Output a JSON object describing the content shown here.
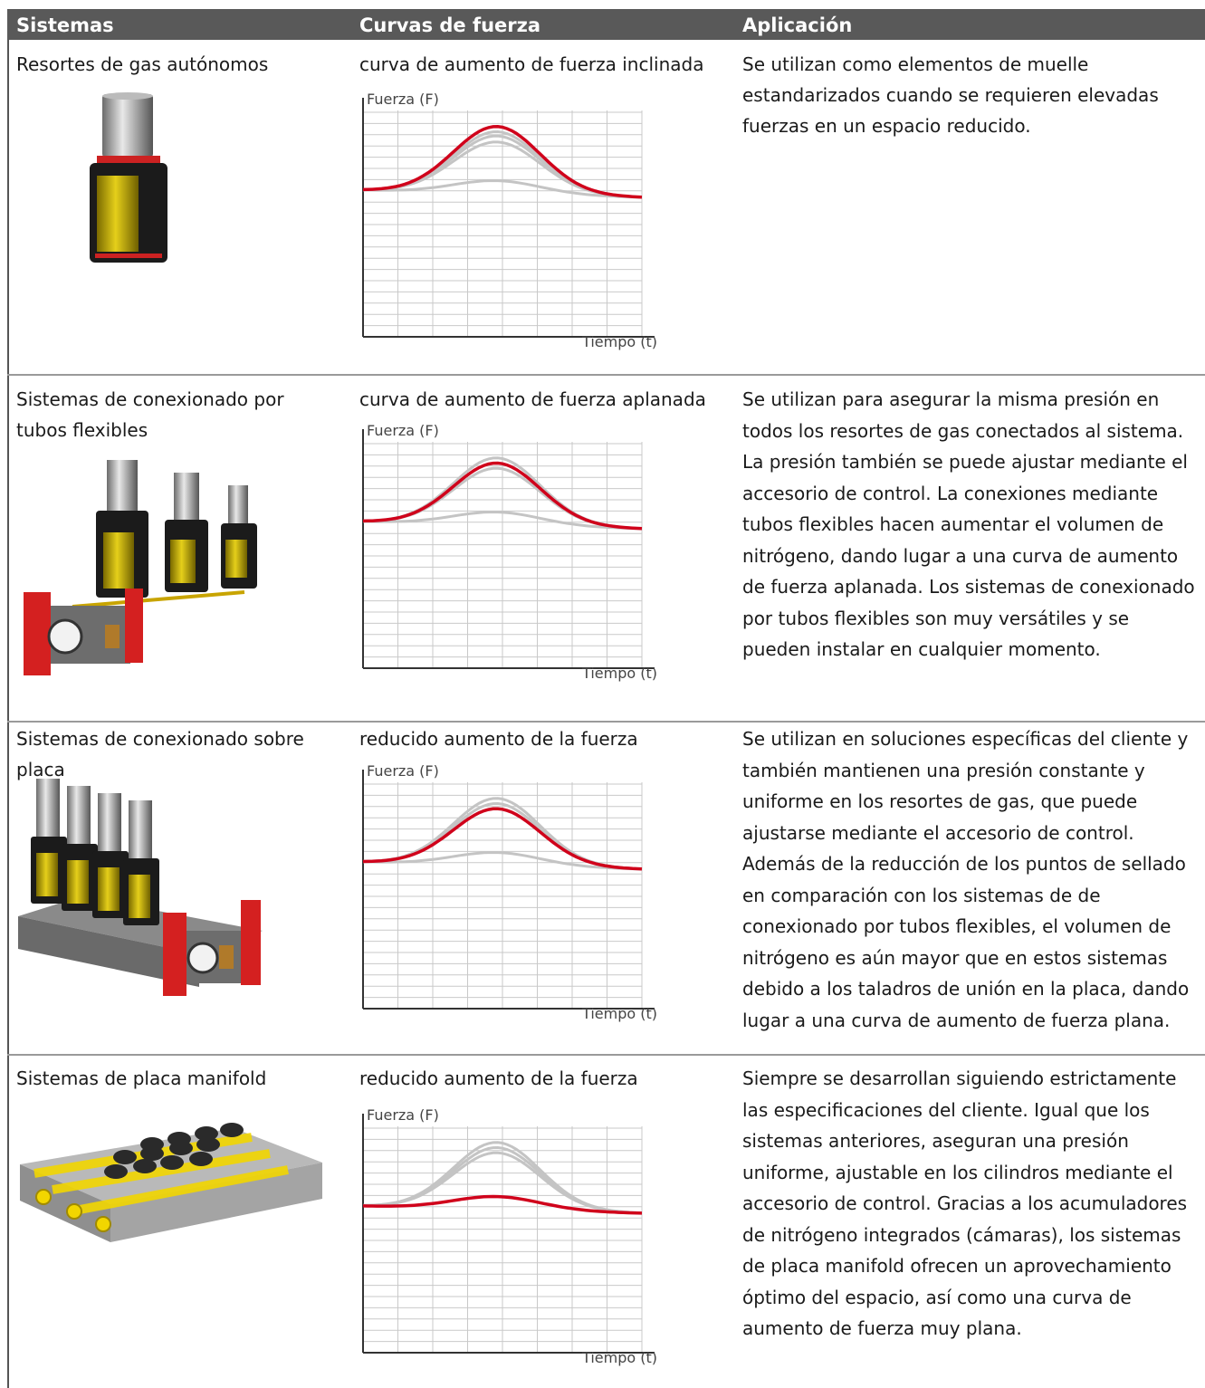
{
  "headers": {
    "systems": "Sistemas",
    "curves": "Curvas de fuerza",
    "application": "Aplicación"
  },
  "colors": {
    "header_bg": "#595959",
    "highlight_curve": "#d0021b",
    "other_curves": "#c4c4c4"
  },
  "rows": [
    {
      "system": "Resortes de gas autónomos",
      "curve_title": "curva de aumento de fuerza inclinada",
      "application": "Se utilizan como elementos de muelle estandarizados cuando se requieren elevadas fuerzas en un espacio reducido.",
      "image_icon": "gas-spring-icon"
    },
    {
      "system": "Sistemas de conexionado por tubos flexibles",
      "curve_title": "curva de aumento de fuerza aplanada",
      "application": "Se utilizan para asegurar la misma presión en todos los resortes de gas conectados al sistema. La presión también se puede ajustar mediante el accesorio de control. La conexiones mediante tubos flexibles hacen aumentar el volumen de nitrógeno, dando lugar a una curva de aumento de fuerza aplanada. Los sistemas de conexionado por tubos flexibles son muy versátiles y se pueden instalar en cualquier momento.",
      "image_icon": "hose-system-icon"
    },
    {
      "system": "Sistemas de conexionado sobre placa",
      "curve_title": "reducido aumento de la fuerza",
      "application": "Se utilizan en soluciones específicas del cliente y también mantienen una presión constante y uniforme en los resortes de gas, que puede ajustarse mediante el accesorio de control. Además de la reducción de los puntos de sellado en comparación con los sistemas de de conexionado por tubos flexibles, el volumen de nitrógeno es aún mayor que en estos sistemas debido a los taladros de unión en la placa, dando lugar a una curva de aumento de fuerza plana.",
      "image_icon": "plate-system-icon"
    },
    {
      "system": "Sistemas de placa manifold",
      "curve_title": "reducido aumento de la fuerza",
      "application": "Siempre se desarrollan siguiendo estrictamente las especificaciones del cliente. Igual que los sistemas anteriores, aseguran una presión uniforme, ajustable en los cilindros mediante el accesorio de control. Gracias a los acumuladores de nitrógeno integrados (cámaras), los sistemas de placa manifold ofrecen un aprovechamiento óptimo del espacio, así como una curva de aumento de fuerza muy plana.",
      "image_icon": "manifold-plate-icon"
    }
  ],
  "chart_data": [
    {
      "type": "line",
      "ylabel": "Fuerza (F)",
      "xlabel": "Tiempo (t)",
      "highlighted_curve": 0,
      "curves": [
        {
          "peak": 0.78,
          "highlight": true
        },
        {
          "peak": 0.72
        },
        {
          "peak": 0.67
        },
        {
          "peak": 0.6
        },
        {
          "peak": 0.15
        }
      ]
    },
    {
      "type": "line",
      "ylabel": "Fuerza (F)",
      "xlabel": "Tiempo (t)",
      "highlighted_curve": 1,
      "curves": [
        {
          "peak": 0.78
        },
        {
          "peak": 0.72,
          "highlight": true
        },
        {
          "peak": 0.66
        },
        {
          "peak": 0.15
        }
      ]
    },
    {
      "type": "line",
      "ylabel": "Fuerza (F)",
      "xlabel": "Tiempo (t)",
      "highlighted_curve": 2,
      "curves": [
        {
          "peak": 0.78
        },
        {
          "peak": 0.72
        },
        {
          "peak": 0.66,
          "highlight": true
        },
        {
          "peak": 0.15
        }
      ]
    },
    {
      "type": "line",
      "ylabel": "Fuerza (F)",
      "xlabel": "Tiempo (t)",
      "highlighted_curve": 3,
      "curves": [
        {
          "peak": 0.78
        },
        {
          "peak": 0.72
        },
        {
          "peak": 0.66
        },
        {
          "peak": 0.15,
          "highlight": true
        }
      ]
    }
  ]
}
